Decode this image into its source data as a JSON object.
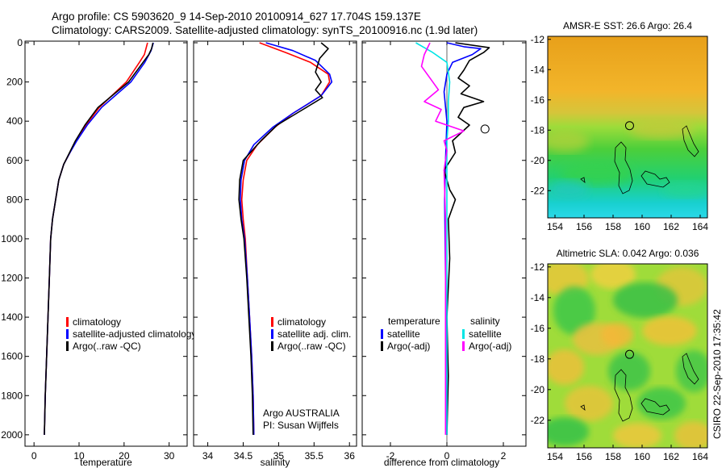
{
  "header": {
    "line1": "Argo profile: CS 5903620_9 14-Sep-2010 20100914_627 17.704S 159.137E",
    "line2": "Climatology: CARS2009. Satellite-adjusted climatology: synTS_20100916.nc (1.9d later)"
  },
  "colors": {
    "climatology": "#ff0000",
    "satellite": "#0000ff",
    "argo": "#000000",
    "sal_satellite": "#00e5e5",
    "sal_argo": "#ff00ff"
  },
  "chart_data": [
    {
      "type": "line",
      "id": "temperature",
      "xlabel": "temperature",
      "xlim": [
        -2,
        34
      ],
      "ylim": [
        0,
        2050
      ],
      "xticks": [
        0,
        10,
        20,
        30
      ],
      "yticks": [
        0,
        200,
        400,
        600,
        800,
        1000,
        1200,
        1400,
        1600,
        1800,
        2000
      ],
      "series": [
        {
          "name": "climatology",
          "color": "#ff0000",
          "points": [
            [
              25.2,
              0
            ],
            [
              24.5,
              60
            ],
            [
              23.4,
              100
            ],
            [
              20.5,
              200
            ],
            [
              14.5,
              330
            ],
            [
              11.5,
              420
            ],
            [
              9.3,
              500
            ],
            [
              8,
              560
            ],
            [
              6.6,
              620
            ],
            [
              5.5,
              700
            ],
            [
              4.8,
              800
            ],
            [
              4.1,
              900
            ],
            [
              3.7,
              1000
            ],
            [
              3.4,
              1200
            ],
            [
              3.1,
              1400
            ],
            [
              2.8,
              1600
            ],
            [
              2.5,
              1800
            ],
            [
              2.3,
              2000
            ]
          ]
        },
        {
          "name": "satellite-adjusted climatology",
          "color": "#0000ff",
          "points": [
            [
              26.5,
              0
            ],
            [
              26,
              40
            ],
            [
              24.6,
              100
            ],
            [
              21.5,
              200
            ],
            [
              15,
              330
            ],
            [
              11.8,
              420
            ],
            [
              9.5,
              500
            ],
            [
              8,
              560
            ],
            [
              6.6,
              620
            ],
            [
              5.5,
              700
            ],
            [
              4.8,
              800
            ],
            [
              4.1,
              900
            ],
            [
              3.7,
              1000
            ],
            [
              3.4,
              1200
            ],
            [
              3.1,
              1400
            ],
            [
              2.8,
              1600
            ],
            [
              2.5,
              1800
            ],
            [
              2.3,
              2000
            ]
          ]
        },
        {
          "name": "Argo(..raw -QC)",
          "color": "#000000",
          "points": [
            [
              26.4,
              0
            ],
            [
              26.1,
              30
            ],
            [
              25.5,
              60
            ],
            [
              24.2,
              100
            ],
            [
              21,
              200
            ],
            [
              14.2,
              330
            ],
            [
              11.3,
              420
            ],
            [
              9.2,
              500
            ],
            [
              7.9,
              560
            ],
            [
              6.6,
              620
            ],
            [
              5.5,
              700
            ],
            [
              4.8,
              800
            ],
            [
              4.1,
              900
            ],
            [
              3.7,
              1000
            ],
            [
              3.4,
              1200
            ],
            [
              3.1,
              1400
            ],
            [
              2.8,
              1600
            ],
            [
              2.5,
              1800
            ],
            [
              2.3,
              2000
            ]
          ]
        }
      ],
      "legend": {
        "items": [
          "climatology",
          "satellite-adjusted climatology",
          "Argo(..raw -QC)"
        ],
        "position": "lower-right"
      }
    },
    {
      "type": "line",
      "id": "salinity",
      "xlabel": "salinity",
      "xlim": [
        33.8,
        36.1
      ],
      "ylim": [
        0,
        2050
      ],
      "xticks": [
        34,
        34.5,
        35,
        35.5,
        36
      ],
      "yticks": [
        0,
        200,
        400,
        600,
        800,
        1000,
        1200,
        1400,
        1600,
        1800,
        2000
      ],
      "series": [
        {
          "name": "climatology",
          "color": "#ff0000",
          "points": [
            [
              34.73,
              0
            ],
            [
              35.1,
              50
            ],
            [
              35.45,
              100
            ],
            [
              35.7,
              160
            ],
            [
              35.72,
              200
            ],
            [
              35.6,
              270
            ],
            [
              35.2,
              360
            ],
            [
              34.95,
              430
            ],
            [
              34.7,
              520
            ],
            [
              34.55,
              600
            ],
            [
              34.5,
              700
            ],
            [
              34.48,
              800
            ],
            [
              34.5,
              900
            ],
            [
              34.53,
              1000
            ],
            [
              34.56,
              1200
            ],
            [
              34.59,
              1400
            ],
            [
              34.62,
              1600
            ],
            [
              34.64,
              1800
            ],
            [
              34.65,
              2000
            ]
          ]
        },
        {
          "name": "satellite adj. clim.",
          "color": "#0000ff",
          "points": [
            [
              34.82,
              0
            ],
            [
              35.2,
              40
            ],
            [
              35.52,
              90
            ],
            [
              35.72,
              160
            ],
            [
              35.75,
              200
            ],
            [
              35.6,
              270
            ],
            [
              35.2,
              360
            ],
            [
              34.92,
              430
            ],
            [
              34.65,
              520
            ],
            [
              34.52,
              600
            ],
            [
              34.47,
              700
            ],
            [
              34.46,
              800
            ],
            [
              34.48,
              900
            ],
            [
              34.52,
              1000
            ],
            [
              34.56,
              1200
            ],
            [
              34.59,
              1400
            ],
            [
              34.62,
              1600
            ],
            [
              34.64,
              1800
            ],
            [
              34.65,
              2000
            ]
          ]
        },
        {
          "name": "Argo(..raw -QC)",
          "color": "#000000",
          "points": [
            [
              35.6,
              0
            ],
            [
              35.7,
              30
            ],
            [
              35.58,
              80
            ],
            [
              35.52,
              150
            ],
            [
              35.6,
              200
            ],
            [
              35.52,
              240
            ],
            [
              35.62,
              280
            ],
            [
              35.3,
              350
            ],
            [
              34.98,
              420
            ],
            [
              34.75,
              500
            ],
            [
              34.5,
              600
            ],
            [
              34.45,
              700
            ],
            [
              34.44,
              800
            ],
            [
              34.47,
              900
            ],
            [
              34.51,
              1000
            ],
            [
              34.55,
              1200
            ],
            [
              34.58,
              1400
            ],
            [
              34.61,
              1600
            ],
            [
              34.63,
              1800
            ],
            [
              34.64,
              2000
            ]
          ]
        }
      ],
      "legend": {
        "items": [
          "climatology",
          "satellite adj. clim.",
          "Argo(..raw -QC)"
        ],
        "position": "lower-right"
      },
      "annotations": [
        "Argo AUSTRALIA",
        "PI: Susan Wijffels"
      ]
    },
    {
      "type": "line",
      "id": "difference",
      "xlabel": "difference from climatology",
      "xlim": [
        -3,
        2.8
      ],
      "ylim": [
        0,
        2050
      ],
      "xticks": [
        -2,
        0,
        2
      ],
      "yticks": [
        0,
        200,
        400,
        600,
        800,
        1000,
        1200,
        1400,
        1600,
        1800,
        2000
      ],
      "series": [
        {
          "name": "temperature satellite",
          "color": "#0000ff",
          "points": [
            [
              0,
              0
            ],
            [
              0.6,
              20
            ],
            [
              1.2,
              30
            ],
            [
              0.9,
              60
            ],
            [
              0.2,
              100
            ],
            [
              0,
              160
            ],
            [
              -0.1,
              250
            ],
            [
              0,
              400
            ],
            [
              -0.05,
              600
            ],
            [
              -0.08,
              800
            ],
            [
              -0.05,
              1200
            ],
            [
              -0.02,
              1600
            ],
            [
              0,
              2000
            ]
          ]
        },
        {
          "name": "temperature Argo(-adj)",
          "color": "#000000",
          "points": [
            [
              0.3,
              0
            ],
            [
              1.5,
              25
            ],
            [
              1.3,
              50
            ],
            [
              0.8,
              90
            ],
            [
              0.6,
              140
            ],
            [
              0.4,
              180
            ],
            [
              0.8,
              220
            ],
            [
              0.5,
              260
            ],
            [
              1.3,
              300
            ],
            [
              0.6,
              330
            ],
            [
              0.4,
              380
            ],
            [
              0.8,
              420
            ],
            [
              0.2,
              500
            ],
            [
              0.3,
              560
            ],
            [
              -0.1,
              650
            ],
            [
              0.1,
              750
            ],
            [
              0.3,
              800
            ],
            [
              0.05,
              900
            ],
            [
              0.1,
              1100
            ],
            [
              0,
              1400
            ],
            [
              0.05,
              1700
            ],
            [
              0,
              2000
            ]
          ]
        },
        {
          "name": "salinity satellite",
          "color": "#00e5e5",
          "points": [
            [
              -1.1,
              0
            ],
            [
              -0.5,
              50
            ],
            [
              0,
              100
            ],
            [
              0.1,
              200
            ],
            [
              0.05,
              300
            ],
            [
              0.05,
              400
            ],
            [
              0,
              500
            ],
            [
              0,
              800
            ],
            [
              0,
              1200
            ],
            [
              0,
              1600
            ],
            [
              0,
              2000
            ]
          ]
        },
        {
          "name": "salinity Argo(-adj)",
          "color": "#ff00ff",
          "points": [
            [
              -0.6,
              0
            ],
            [
              -0.8,
              60
            ],
            [
              -0.9,
              120
            ],
            [
              -0.6,
              180
            ],
            [
              -0.3,
              240
            ],
            [
              -0.8,
              300
            ],
            [
              -0.2,
              340
            ],
            [
              -0.4,
              400
            ],
            [
              0.6,
              450
            ],
            [
              -0.1,
              500
            ],
            [
              0,
              550
            ],
            [
              -0.1,
              650
            ],
            [
              -0.05,
              900
            ],
            [
              -0.05,
              1300
            ],
            [
              -0.05,
              2000
            ]
          ]
        }
      ],
      "legend": {
        "groups": [
          {
            "heading": "temperature",
            "items": [
              "satellite",
              "Argo(-adj)"
            ]
          },
          {
            "heading": "salinity",
            "items": [
              "satellite",
              "Argo(-adj)"
            ]
          }
        ],
        "position": "lower"
      },
      "circle_marker": {
        "x": 1.35,
        "y": 440
      }
    },
    {
      "type": "heatmap",
      "id": "sst_map",
      "title": "AMSR-E SST: 26.6 Argo: 26.4",
      "xlim": [
        153.5,
        164.5
      ],
      "ylim": [
        -23.8,
        -11.8
      ],
      "xticks": [
        154,
        156,
        158,
        160,
        162,
        164
      ],
      "yticks": [
        -12,
        -14,
        -16,
        -18,
        -20,
        -22
      ],
      "argo_location": {
        "lon": 159.137,
        "lat": -17.704
      }
    },
    {
      "type": "heatmap",
      "id": "sla_map",
      "title": "Altimetric SLA: 0.042 Argo: 0.036",
      "xlim": [
        153.5,
        164.5
      ],
      "ylim": [
        -23.8,
        -11.8
      ],
      "xticks": [
        154,
        156,
        158,
        160,
        162,
        164
      ],
      "yticks": [
        -12,
        -14,
        -16,
        -18,
        -20,
        -22
      ],
      "argo_location": {
        "lon": 159.137,
        "lat": -17.704
      }
    }
  ],
  "footer": {
    "stamp": "CSIRO 22-Sep-2010 17:35:42"
  }
}
